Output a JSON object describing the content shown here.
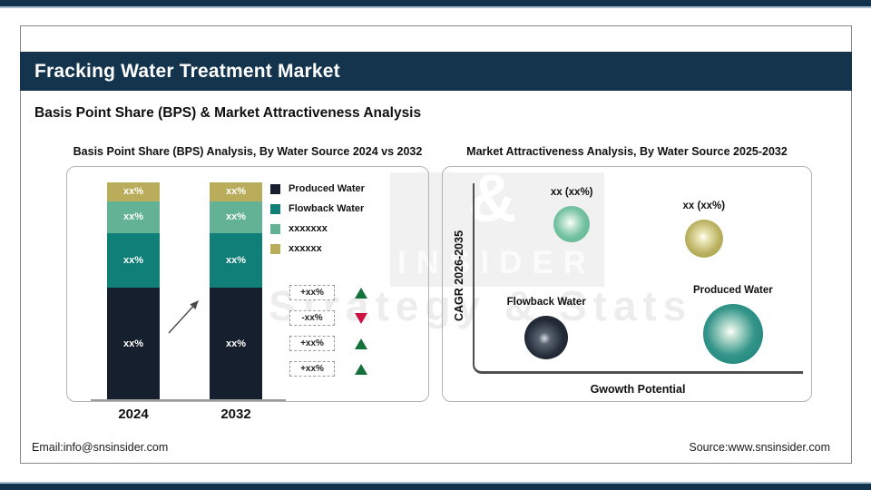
{
  "page": {
    "header_title": "Fracking Water Treatment Market",
    "subtitle": "Basis Point Share (BPS) & Market Attractiveness Analysis",
    "footer_email": "Email:info@snsinsider.com",
    "footer_source": "Source:www.snsinsider.com",
    "watermark": {
      "amp": "&",
      "name": "INSIDER",
      "tagline": "Strategy & Stats"
    }
  },
  "colors": {
    "header_navy": "#14344e",
    "produced_water": "#161f2d",
    "flowback_water": "#0f7f78",
    "seafoam": "#63b295",
    "olive": "#b9ad5c",
    "up_green": "#15713b",
    "down_red": "#ce1040"
  },
  "chart_data": [
    {
      "type": "bar",
      "stacked": true,
      "title": "Basis Point Share (BPS) Analysis, By Water Source 2024 vs 2032",
      "categories": [
        "2024",
        "2032"
      ],
      "series": [
        {
          "name": "Produced Water",
          "color_key": "produced_water",
          "values": [
            51.7,
            51.7
          ],
          "labels": [
            "xx%",
            "xx%"
          ]
        },
        {
          "name": "Flowback Water",
          "color_key": "flowback_water",
          "values": [
            25.0,
            25.0
          ],
          "labels": [
            "xx%",
            "xx%"
          ]
        },
        {
          "name": "xxxxxxx",
          "color_key": "seafoam",
          "values": [
            14.6,
            14.6
          ],
          "labels": [
            "xx%",
            "xx%"
          ]
        },
        {
          "name": "xxxxxx",
          "color_key": "olive",
          "values": [
            8.7,
            8.7
          ],
          "labels": [
            "xx%",
            "xx%"
          ]
        }
      ],
      "legend_position": "right",
      "change_indicators": [
        {
          "label": "+xx%",
          "direction": "up"
        },
        {
          "label": "-xx%",
          "direction": "down"
        },
        {
          "label": "+xx%",
          "direction": "up"
        },
        {
          "label": "+xx%",
          "direction": "up"
        }
      ]
    },
    {
      "type": "scatter",
      "title": "Market Attractiveness Analysis, By Water Source 2025-2032",
      "xlabel": "Gwowth Potential",
      "ylabel": "CAGR 2026-2035",
      "grid": false,
      "bubbles": [
        {
          "name": "xxxxxxx",
          "label": "xx (xx%)",
          "color_key": "seafoam",
          "x_pct": 30,
          "y_pct": 78.7,
          "r": 20
        },
        {
          "name": "xxxxxx",
          "label": "xx (xx%)",
          "color_key": "olive",
          "x_pct": 70,
          "y_pct": 71.1,
          "r": 21
        },
        {
          "name": "Flowback Water",
          "label": "Flowback Water",
          "color_key": "flowback_water",
          "x_pct": 22.3,
          "y_pct": 19.4,
          "r": 24
        },
        {
          "name": "Produced Water",
          "label": "Produced Water",
          "color_key": "produced_water",
          "x_pct": 78.8,
          "y_pct": 21.3,
          "r": 33
        }
      ]
    }
  ]
}
